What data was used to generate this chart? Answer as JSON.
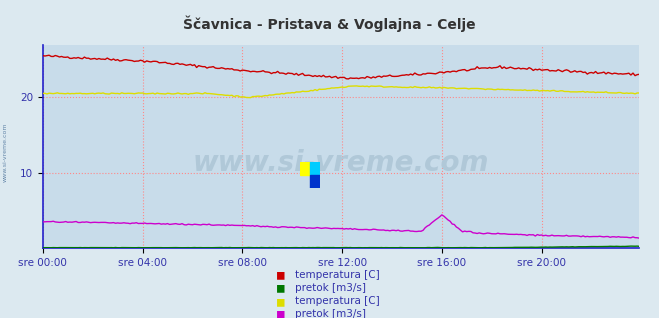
{
  "title": "Ščavnica - Pristava & Voglajna - Celje",
  "title_color": "#333333",
  "bg_color": "#dce9f0",
  "plot_bg_color": "#c8dcea",
  "grid_color": "#ff8888",
  "grid_linestyle": ":",
  "x_label_color": "#3333aa",
  "y_label_color": "#3333aa",
  "axis_line_color": "#2222cc",
  "watermark_text": "www.si-vreme.com",
  "watermark_color": "#b0c8d8",
  "side_watermark_color": "#6688aa",
  "x_ticks": [
    "sre 00:00",
    "sre 04:00",
    "sre 08:00",
    "sre 12:00",
    "sre 16:00",
    "sre 20:00"
  ],
  "x_tick_positions": [
    0,
    48,
    96,
    144,
    192,
    240
  ],
  "y_ticks": [
    10,
    20
  ],
  "ylim": [
    0,
    27
  ],
  "xlim": [
    0,
    287
  ],
  "n_points": 288,
  "colors": {
    "scavnica_temp": "#cc0000",
    "scavnica_pretok": "#007700",
    "voglajna_temp": "#dddd00",
    "voglajna_pretok": "#cc00cc"
  },
  "legend": [
    {
      "label": "temperatura [C]",
      "color": "#cc0000"
    },
    {
      "label": "pretok [m3/s]",
      "color": "#007700"
    },
    {
      "label": "temperatura [C]",
      "color": "#dddd00"
    },
    {
      "label": "pretok [m3/s]",
      "color": "#cc00cc"
    }
  ],
  "logo_colors": {
    "top_left": "#ffff00",
    "top_right": "#00ccff",
    "bottom_right": "#0033cc"
  }
}
